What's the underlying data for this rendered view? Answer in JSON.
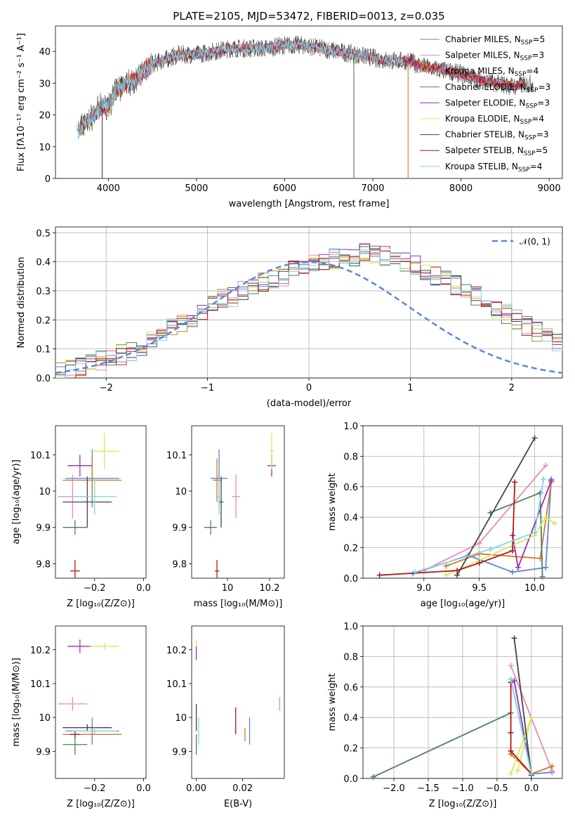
{
  "figure_title": "PLATE=2105, MJD=53472, FIBERID=0013, z=0.035",
  "models": [
    {
      "name": "Chabrier MILES, N",
      "sub": "SSP",
      "tail": "=5",
      "color": "#5b86d6"
    },
    {
      "name": "Salpeter MILES, N",
      "sub": "SSP",
      "tail": "=3",
      "color": "#e88ab8"
    },
    {
      "name": "Kroupa MILES, N",
      "sub": "SSP",
      "tail": "=4",
      "color": "#d47a2a"
    },
    {
      "name": "Chabrier ELODIE, N",
      "sub": "SSP",
      "tail": "=3",
      "color": "#4f7f5a"
    },
    {
      "name": "Salpeter ELODIE, N",
      "sub": "SSP",
      "tail": "=3",
      "color": "#9a2fb0"
    },
    {
      "name": "Kroupa ELODIE, N",
      "sub": "SSP",
      "tail": "=4",
      "color": "#d9e85a"
    },
    {
      "name": "Chabrier STELIB, N",
      "sub": "SSP",
      "tail": "=3",
      "color": "#444444"
    },
    {
      "name": "Salpeter STELIB, N",
      "sub": "SSP",
      "tail": "=5",
      "color": "#b01818"
    },
    {
      "name": "Kroupa STELIB, N",
      "sub": "SSP",
      "tail": "=4",
      "color": "#7fd7e3"
    }
  ],
  "chart_data": [
    {
      "id": "spectrum",
      "type": "line",
      "xlabel": "wavelength [Angstrom, rest frame]",
      "ylabel": "Flux [fλ10⁻¹⁷ erg cm⁻² s⁻¹ A⁻¹]",
      "xlim": [
        3400,
        9150
      ],
      "ylim": [
        0,
        48
      ],
      "xticks": [
        4000,
        5000,
        6000,
        7000,
        8000,
        9000
      ],
      "yticks": [
        0,
        10,
        20,
        30,
        40
      ],
      "grid": false,
      "legend": "top-right",
      "continuum": {
        "x": [
          3650,
          3800,
          3900,
          4000,
          4100,
          4200,
          4300,
          4400,
          4500,
          4600,
          4700,
          4800,
          5000,
          5200,
          5400,
          5600,
          5800,
          6000,
          6200,
          6400,
          6600,
          6800,
          7000,
          7200,
          7400,
          7600,
          7800,
          8000,
          8200,
          8400,
          8600,
          8800
        ],
        "y": [
          15,
          19,
          22,
          23,
          28,
          30,
          31,
          34,
          36,
          37,
          38,
          39,
          39,
          40,
          41,
          41,
          41,
          42,
          42,
          41,
          40,
          39,
          38,
          37,
          37,
          35,
          34,
          33,
          31,
          30,
          29,
          30
        ]
      }
    },
    {
      "id": "residuals",
      "type": "histogram",
      "xlabel": "(data-model)/error",
      "ylabel": "Normed distribution",
      "xlim": [
        -2.5,
        2.5
      ],
      "ylim": [
        0,
        0.52
      ],
      "xticks": [
        -2,
        -1,
        0,
        1,
        2
      ],
      "yticks": [
        0.0,
        0.1,
        0.2,
        0.3,
        0.4,
        0.5
      ],
      "grid": true,
      "legend": "top-right",
      "reference": "𝒩(0, 1)",
      "bin_width": 0.1,
      "density": [
        0.02,
        0.03,
        0.04,
        0.05,
        0.06,
        0.07,
        0.08,
        0.09,
        0.11,
        0.13,
        0.15,
        0.17,
        0.19,
        0.21,
        0.23,
        0.25,
        0.27,
        0.28,
        0.3,
        0.31,
        0.33,
        0.34,
        0.35,
        0.37,
        0.38,
        0.39,
        0.4,
        0.41,
        0.41,
        0.42,
        0.43,
        0.43,
        0.42,
        0.41,
        0.4,
        0.39,
        0.37,
        0.35,
        0.34,
        0.32,
        0.3,
        0.28,
        0.26,
        0.24,
        0.22,
        0.2,
        0.18,
        0.16,
        0.14,
        0.12,
        0.11,
        0.09,
        0.08,
        0.07,
        0.06,
        0.05,
        0.04,
        0.03,
        0.03,
        0.02
      ]
    },
    {
      "id": "age_vs_Z",
      "type": "scatter",
      "xlabel": "Z [log₁₀(Z/Z⊙)]",
      "ylabel": "age  [log₁₀(age/yr)]",
      "xlim": [
        -0.36,
        0.01
      ],
      "ylim": [
        9.76,
        10.18
      ],
      "xticks": [
        -0.2,
        0.0
      ],
      "xticklabels": [
        "−0.2",
        "0.0"
      ],
      "yticks": [
        9.8,
        9.9,
        10.0,
        10.1
      ],
      "points": [
        {
          "x": -0.21,
          "y": 10.035,
          "ex": 0.11,
          "ey": 0.08
        },
        {
          "x": -0.29,
          "y": 9.985,
          "ex": 0.06,
          "ey": 0.06
        },
        {
          "x": -0.21,
          "y": 10.03,
          "ex": 0.12,
          "ey": 0.06
        },
        {
          "x": -0.28,
          "y": 9.9,
          "ex": 0.05,
          "ey": 0.02
        },
        {
          "x": -0.26,
          "y": 10.07,
          "ex": 0.05,
          "ey": 0.03
        },
        {
          "x": -0.16,
          "y": 10.11,
          "ex": 0.06,
          "ey": 0.05
        },
        {
          "x": -0.23,
          "y": 9.97,
          "ex": 0.1,
          "ey": 0.07
        },
        {
          "x": -0.28,
          "y": 9.78,
          "ex": 0.02,
          "ey": 0.03
        },
        {
          "x": -0.2,
          "y": 9.985,
          "ex": 0.09,
          "ey": 0.05
        }
      ]
    },
    {
      "id": "age_vs_mass",
      "type": "scatter",
      "xlabel": "mass [log₁₀(M/M⊙)]",
      "ylabel": "",
      "xlim": [
        9.83,
        10.27
      ],
      "ylim": [
        9.76,
        10.18
      ],
      "xticks": [
        10.0,
        10.2
      ],
      "yticks": [
        9.8,
        9.9,
        10.0,
        10.1
      ],
      "points": [
        {
          "x": 9.96,
          "y": 10.035,
          "ex": 0.04,
          "ey": 0.08
        },
        {
          "x": 10.04,
          "y": 9.985,
          "ex": 0.02,
          "ey": 0.06
        },
        {
          "x": 9.95,
          "y": 10.03,
          "ex": 0.02,
          "ey": 0.06
        },
        {
          "x": 9.92,
          "y": 9.9,
          "ex": 0.03,
          "ey": 0.02
        },
        {
          "x": 10.21,
          "y": 10.07,
          "ex": 0.02,
          "ey": 0.03
        },
        {
          "x": 10.21,
          "y": 10.11,
          "ex": 0.01,
          "ey": 0.05
        },
        {
          "x": 9.97,
          "y": 9.97,
          "ex": 0.01,
          "ey": 0.07
        },
        {
          "x": 9.95,
          "y": 9.78,
          "ex": 0.01,
          "ey": 0.03
        },
        {
          "x": 9.96,
          "y": 9.985,
          "ex": 0.01,
          "ey": 0.05
        }
      ]
    },
    {
      "id": "weight_vs_age",
      "type": "line",
      "xlabel": "age  [log₁₀(age/yr)]",
      "ylabel": "mass weight",
      "xlim": [
        8.45,
        10.25
      ],
      "ylim": [
        0,
        1.0
      ],
      "xticks": [
        9.0,
        9.5,
        10.0
      ],
      "yticks": [
        0.0,
        0.2,
        0.4,
        0.6,
        0.8,
        1.0
      ],
      "grid": true,
      "series": [
        {
          "x": [
            8.9,
            9.4,
            9.8,
            10.1,
            10.15
          ],
          "y": [
            0.03,
            0.15,
            0.04,
            0.07,
            0.65
          ]
        },
        {
          "x": [
            9.0,
            9.5,
            10.1
          ],
          "y": [
            0.05,
            0.23,
            0.74
          ]
        },
        {
          "x": [
            9.2,
            9.5,
            10.05,
            10.15
          ],
          "y": [
            0.08,
            0.16,
            0.13,
            0.63
          ]
        },
        {
          "x": [
            9.6,
            10.05,
            10.07
          ],
          "y": [
            0.43,
            0.56,
            0.01
          ]
        },
        {
          "x": [
            9.8,
            9.85,
            10.15
          ],
          "y": [
            0.28,
            0.07,
            0.64
          ]
        },
        {
          "x": [
            9.2,
            10.0,
            10.1,
            10.18
          ],
          "y": [
            0.02,
            0.28,
            0.4,
            0.36
          ]
        },
        {
          "x": [
            9.3,
            10.0
          ],
          "y": [
            0.02,
            0.92
          ]
        },
        {
          "x": [
            8.6,
            9.3,
            9.5,
            9.8,
            9.82
          ],
          "y": [
            0.02,
            0.05,
            0.1,
            0.18,
            0.63
          ]
        },
        {
          "x": [
            8.92,
            9.6,
            10.0,
            10.08
          ],
          "y": [
            0.04,
            0.19,
            0.3,
            0.65
          ]
        }
      ]
    },
    {
      "id": "mass_vs_Z",
      "type": "scatter",
      "xlabel": "Z [log₁₀(Z/Z⊙)]",
      "ylabel": "mass [log₁₀(M/M⊙)]",
      "xlim": [
        -0.36,
        0.01
      ],
      "ylim": [
        9.82,
        10.27
      ],
      "xticks": [
        -0.2,
        0.0
      ],
      "xticklabels": [
        "−0.2",
        "0.0"
      ],
      "yticks": [
        9.9,
        10.0,
        10.1,
        10.2
      ],
      "points": [
        {
          "x": -0.21,
          "y": 9.96,
          "ex": 0.11,
          "ey": 0.04
        },
        {
          "x": -0.29,
          "y": 10.04,
          "ex": 0.06,
          "ey": 0.02
        },
        {
          "x": -0.21,
          "y": 9.95,
          "ex": 0.12,
          "ey": 0.02
        },
        {
          "x": -0.28,
          "y": 9.92,
          "ex": 0.05,
          "ey": 0.03
        },
        {
          "x": -0.26,
          "y": 10.21,
          "ex": 0.05,
          "ey": 0.02
        },
        {
          "x": -0.16,
          "y": 10.21,
          "ex": 0.06,
          "ey": 0.01
        },
        {
          "x": -0.23,
          "y": 9.97,
          "ex": 0.1,
          "ey": 0.01
        },
        {
          "x": -0.28,
          "y": 9.95,
          "ex": 0.02,
          "ey": 0.01
        },
        {
          "x": -0.2,
          "y": 9.96,
          "ex": 0.09,
          "ey": 0.01
        }
      ]
    },
    {
      "id": "mass_vs_ebv",
      "type": "scatter",
      "xlabel": "E(B-V)",
      "ylabel": "",
      "xlim": [
        -0.002,
        0.038
      ],
      "ylim": [
        9.82,
        10.27
      ],
      "xticks": [
        0.0,
        0.02
      ],
      "xticklabels": [
        "0.00",
        "0.02"
      ],
      "yticks": [
        9.9,
        10.0,
        10.1,
        10.2
      ],
      "points": [
        {
          "x": 0.023,
          "y": 9.96,
          "ex": 0,
          "ey": 0.04
        },
        {
          "x": 0.036,
          "y": 10.04,
          "ex": 0,
          "ey": 0.02
        },
        {
          "x": 0.021,
          "y": 9.95,
          "ex": 0,
          "ey": 0.02
        },
        {
          "x": 0.0,
          "y": 9.92,
          "ex": 0,
          "ey": 0.03
        },
        {
          "x": 0.0,
          "y": 10.19,
          "ex": 0,
          "ey": 0.02
        },
        {
          "x": 0.0,
          "y": 10.22,
          "ex": 0,
          "ey": 0.01
        },
        {
          "x": 0.0,
          "y": 10.0,
          "ex": 0,
          "ey": 0.04
        },
        {
          "x": 0.017,
          "y": 9.99,
          "ex": 0,
          "ey": 0.04
        },
        {
          "x": 0.001,
          "y": 9.96,
          "ex": 0,
          "ey": 0.04
        }
      ]
    },
    {
      "id": "weight_vs_Z",
      "type": "line",
      "xlabel": "Z [log₁₀(Z/Z⊙)]",
      "ylabel": "mass weight",
      "xlim": [
        -2.45,
        0.45
      ],
      "ylim": [
        0,
        1.0
      ],
      "xticks": [
        -2.0,
        -1.5,
        -1.0,
        -0.5,
        0.0
      ],
      "xticklabels": [
        "−2.0",
        "−1.5",
        "−1.0",
        "−0.5",
        "0.0"
      ],
      "yticks": [
        0.0,
        0.2,
        0.4,
        0.6,
        0.8,
        1.0
      ],
      "grid": true,
      "series": [
        {
          "x": [
            -0.3,
            0.0,
            0.3
          ],
          "y": [
            0.65,
            0.03,
            0.04
          ]
        },
        {
          "x": [
            -0.3,
            0.3
          ],
          "y": [
            0.74,
            0.05
          ]
        },
        {
          "x": [
            -0.3,
            0.0,
            0.3
          ],
          "y": [
            0.16,
            0.03,
            0.08
          ]
        },
        {
          "x": [
            -2.3,
            -0.3
          ],
          "y": [
            0.01,
            0.43
          ]
        },
        {
          "x": [
            -0.25,
            0.0
          ],
          "y": [
            0.64,
            0.03
          ]
        },
        {
          "x": [
            -0.3,
            0.0,
            -0.2
          ],
          "y": [
            0.03,
            0.4,
            0.05
          ]
        },
        {
          "x": [
            -0.25,
            0.0
          ],
          "y": [
            0.92,
            0.02
          ]
        },
        {
          "x": [
            -0.3,
            -0.3,
            -0.3,
            0.0
          ],
          "y": [
            0.63,
            0.3,
            0.18,
            0.03
          ]
        },
        {
          "x": [
            -0.3,
            0.0
          ],
          "y": [
            0.65,
            0.03
          ]
        }
      ]
    }
  ]
}
